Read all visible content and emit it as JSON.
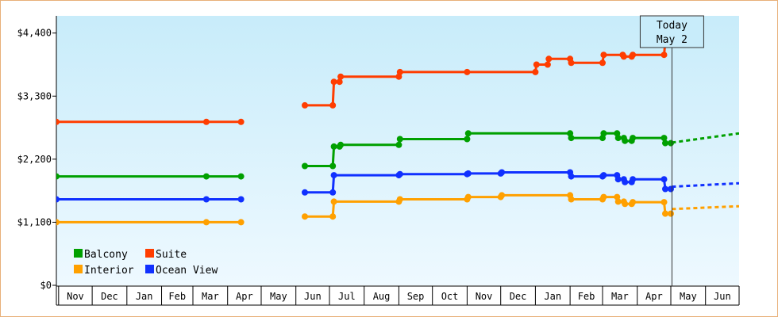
{
  "chart_data": {
    "type": "line",
    "subtype": "step",
    "title": "",
    "xlabel": "",
    "ylabel": "",
    "y_tick_labels": [
      "$0",
      "$1,100",
      "$2,200",
      "$3,300",
      "$4,400"
    ],
    "y_ticks": [
      0,
      1100,
      2200,
      3300,
      4400
    ],
    "ylim": [
      0,
      4700
    ],
    "x_axis_type": "date",
    "xlim": [
      "2022-10-30",
      "2024-07-01"
    ],
    "x_tick_labels": [
      {
        "label": "Nov",
        "date": "2022-11-01"
      },
      {
        "label": "Dec",
        "date": "2022-12-01"
      },
      {
        "label": "Jan",
        "date": "2023-01-01"
      },
      {
        "label": "Feb",
        "date": "2023-02-01"
      },
      {
        "label": "Mar",
        "date": "2023-03-01"
      },
      {
        "label": "Apr",
        "date": "2023-04-01"
      },
      {
        "label": "May",
        "date": "2023-05-01"
      },
      {
        "label": "Jun",
        "date": "2023-06-01"
      },
      {
        "label": "Jul",
        "date": "2023-07-01"
      },
      {
        "label": "Aug",
        "date": "2023-08-01"
      },
      {
        "label": "Sep",
        "date": "2023-09-01"
      },
      {
        "label": "Oct",
        "date": "2023-10-01"
      },
      {
        "label": "Nov",
        "date": "2023-11-01"
      },
      {
        "label": "Dec",
        "date": "2023-12-01"
      },
      {
        "label": "Jan",
        "date": "2024-01-01"
      },
      {
        "label": "Feb",
        "date": "2024-02-01"
      },
      {
        "label": "Mar",
        "date": "2024-03-01"
      },
      {
        "label": "Apr",
        "date": "2024-04-01"
      },
      {
        "label": "May",
        "date": "2024-05-01"
      },
      {
        "label": "Jun",
        "date": "2024-06-01"
      }
    ],
    "today": {
      "line1": "Today",
      "line2": "May 2",
      "date": "2024-05-02"
    },
    "legend_position": "bottom-left",
    "grid": false,
    "background_gradient": [
      "#c8ecfa",
      "#eef9ff"
    ],
    "series": [
      {
        "name": "Suite",
        "color": "#ff3d00",
        "segments": [
          [
            [
              "2022-10-30",
              2850
            ],
            [
              "2023-03-13",
              2850
            ],
            [
              "2023-04-13",
              2850
            ]
          ],
          [
            [
              "2023-06-09",
              3140
            ],
            [
              "2023-07-04",
              3140
            ],
            [
              "2023-07-05",
              3550
            ],
            [
              "2023-07-10",
              3550
            ],
            [
              "2023-07-11",
              3640
            ],
            [
              "2023-09-01",
              3640
            ],
            [
              "2023-09-02",
              3720
            ],
            [
              "2023-11-01",
              3720
            ],
            [
              "2024-01-01",
              3720
            ],
            [
              "2024-01-02",
              3850
            ],
            [
              "2024-01-12",
              3850
            ],
            [
              "2024-01-13",
              3950
            ],
            [
              "2024-02-01",
              3950
            ],
            [
              "2024-02-02",
              3880
            ],
            [
              "2024-03-01",
              3880
            ],
            [
              "2024-03-02",
              4020
            ],
            [
              "2024-03-19",
              4020
            ],
            [
              "2024-03-20",
              3990
            ],
            [
              "2024-03-27",
              3990
            ],
            [
              "2024-03-28",
              4020
            ],
            [
              "2024-04-25",
              4020
            ],
            [
              "2024-04-26",
              4250
            ],
            [
              "2024-05-01",
              4250
            ]
          ]
        ],
        "forecast": []
      },
      {
        "name": "Balcony",
        "color": "#00a000",
        "segments": [
          [
            [
              "2022-10-30",
              1900
            ],
            [
              "2023-03-13",
              1900
            ],
            [
              "2023-04-13",
              1900
            ]
          ],
          [
            [
              "2023-06-09",
              2080
            ],
            [
              "2023-07-04",
              2080
            ],
            [
              "2023-07-05",
              2420
            ],
            [
              "2023-07-10",
              2420
            ],
            [
              "2023-07-11",
              2450
            ],
            [
              "2023-09-01",
              2450
            ],
            [
              "2023-09-02",
              2550
            ],
            [
              "2023-11-01",
              2550
            ],
            [
              "2023-11-02",
              2650
            ],
            [
              "2024-02-01",
              2650
            ],
            [
              "2024-02-02",
              2570
            ],
            [
              "2024-03-01",
              2570
            ],
            [
              "2024-03-02",
              2650
            ],
            [
              "2024-03-14",
              2650
            ],
            [
              "2024-03-15",
              2570
            ],
            [
              "2024-03-20",
              2570
            ],
            [
              "2024-03-21",
              2520
            ],
            [
              "2024-03-27",
              2520
            ],
            [
              "2024-03-28",
              2570
            ],
            [
              "2024-04-25",
              2570
            ],
            [
              "2024-04-26",
              2480
            ],
            [
              "2024-05-01",
              2480
            ]
          ]
        ],
        "forecast": [
          [
            "2024-05-02",
            2490
          ],
          [
            "2024-07-01",
            2650
          ]
        ]
      },
      {
        "name": "Ocean View",
        "color": "#1030ff",
        "segments": [
          [
            [
              "2022-10-30",
              1500
            ],
            [
              "2023-03-13",
              1500
            ],
            [
              "2023-04-13",
              1500
            ]
          ],
          [
            [
              "2023-06-09",
              1620
            ],
            [
              "2023-07-04",
              1620
            ],
            [
              "2023-07-05",
              1920
            ],
            [
              "2023-09-01",
              1920
            ],
            [
              "2023-09-02",
              1940
            ],
            [
              "2023-11-01",
              1940
            ],
            [
              "2023-11-02",
              1950
            ],
            [
              "2023-12-01",
              1950
            ],
            [
              "2023-12-02",
              1970
            ],
            [
              "2024-02-01",
              1970
            ],
            [
              "2024-02-02",
              1900
            ],
            [
              "2024-03-01",
              1900
            ],
            [
              "2024-03-02",
              1920
            ],
            [
              "2024-03-14",
              1920
            ],
            [
              "2024-03-15",
              1850
            ],
            [
              "2024-03-20",
              1850
            ],
            [
              "2024-03-21",
              1800
            ],
            [
              "2024-03-27",
              1800
            ],
            [
              "2024-03-28",
              1850
            ],
            [
              "2024-04-25",
              1850
            ],
            [
              "2024-04-26",
              1680
            ],
            [
              "2024-05-01",
              1680
            ]
          ]
        ],
        "forecast": [
          [
            "2024-05-02",
            1720
          ],
          [
            "2024-07-01",
            1780
          ]
        ]
      },
      {
        "name": "Interior",
        "color": "#ffa000",
        "segments": [
          [
            [
              "2022-10-30",
              1100
            ],
            [
              "2023-03-13",
              1100
            ],
            [
              "2023-04-13",
              1100
            ]
          ],
          [
            [
              "2023-06-09",
              1200
            ],
            [
              "2023-07-04",
              1200
            ],
            [
              "2023-07-05",
              1460
            ],
            [
              "2023-09-01",
              1460
            ],
            [
              "2023-09-02",
              1500
            ],
            [
              "2023-11-01",
              1500
            ],
            [
              "2023-11-02",
              1540
            ],
            [
              "2023-12-01",
              1540
            ],
            [
              "2023-12-02",
              1570
            ],
            [
              "2024-02-01",
              1570
            ],
            [
              "2024-02-02",
              1500
            ],
            [
              "2024-03-01",
              1500
            ],
            [
              "2024-03-02",
              1540
            ],
            [
              "2024-03-14",
              1540
            ],
            [
              "2024-03-15",
              1460
            ],
            [
              "2024-03-20",
              1460
            ],
            [
              "2024-03-21",
              1420
            ],
            [
              "2024-03-27",
              1420
            ],
            [
              "2024-03-28",
              1450
            ],
            [
              "2024-04-25",
              1450
            ],
            [
              "2024-04-26",
              1250
            ],
            [
              "2024-05-01",
              1250
            ]
          ]
        ],
        "forecast": [
          [
            "2024-05-02",
            1330
          ],
          [
            "2024-07-01",
            1380
          ]
        ]
      }
    ]
  },
  "legend": [
    {
      "label": "Balcony",
      "color": "#00a000"
    },
    {
      "label": "Suite",
      "color": "#ff3d00"
    },
    {
      "label": "Interior",
      "color": "#ffa000"
    },
    {
      "label": "Ocean View",
      "color": "#1030ff"
    }
  ]
}
